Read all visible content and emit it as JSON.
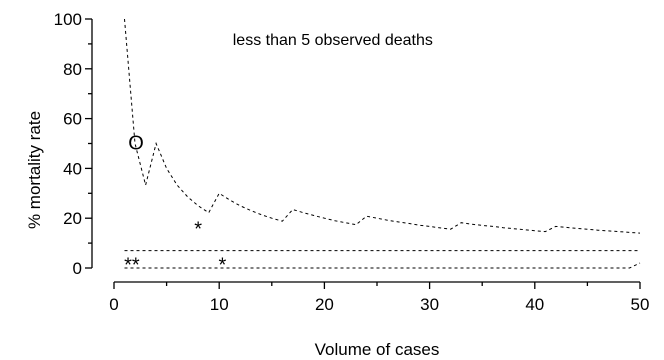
{
  "chart_data": {
    "type": "line",
    "title": "",
    "xlabel": "Volume of cases",
    "ylabel": "% mortality rate",
    "xlim": [
      0,
      50
    ],
    "ylim": [
      0,
      100
    ],
    "xticks": [
      0,
      10,
      20,
      30,
      40,
      50
    ],
    "yticks": [
      0,
      20,
      40,
      60,
      80,
      100
    ],
    "grid": false,
    "series": [
      {
        "x": [
          1,
          2,
          3,
          4,
          5,
          6,
          7,
          8,
          9,
          10,
          11,
          12,
          13,
          14,
          15,
          16,
          17,
          18,
          19,
          20,
          21,
          22,
          23,
          24,
          25,
          26,
          27,
          28,
          29,
          30,
          31,
          32,
          33,
          34,
          35,
          36,
          37,
          38,
          39,
          40,
          41,
          42,
          43,
          44,
          45,
          46,
          47,
          48,
          49,
          50
        ],
        "values": [
          100,
          50,
          33.3,
          50,
          40,
          33.3,
          28.6,
          25,
          22.2,
          30,
          27.3,
          25,
          23.1,
          21.4,
          20,
          18.8,
          23.5,
          22.2,
          21.1,
          20,
          19,
          18.2,
          17.4,
          20.8,
          20,
          19.2,
          18.5,
          17.9,
          17.2,
          16.7,
          16.1,
          15.6,
          18.2,
          17.6,
          17.1,
          16.7,
          16.2,
          15.8,
          15.4,
          15,
          14.6,
          16.7,
          16.3,
          15.9,
          15.6,
          15.2,
          14.9,
          14.6,
          14.3,
          14
        ]
      },
      {
        "x": [
          1,
          50
        ],
        "values": [
          7,
          7
        ]
      },
      {
        "x": [
          1,
          49,
          50
        ],
        "values": [
          0,
          0,
          2
        ]
      }
    ],
    "annotations": [
      {
        "text": "less than 5 observed deaths",
        "x": 20.8,
        "y": 89.5
      },
      {
        "text": "O",
        "x": 2.1,
        "y": 47.5,
        "size": 20
      },
      {
        "text": "*",
        "x": 8,
        "y": 13,
        "size": 20
      },
      {
        "text": "**",
        "x": 1.7,
        "y": -1.5,
        "size": 20
      },
      {
        "text": "*",
        "x": 10.3,
        "y": -1.5,
        "size": 20
      }
    ]
  }
}
